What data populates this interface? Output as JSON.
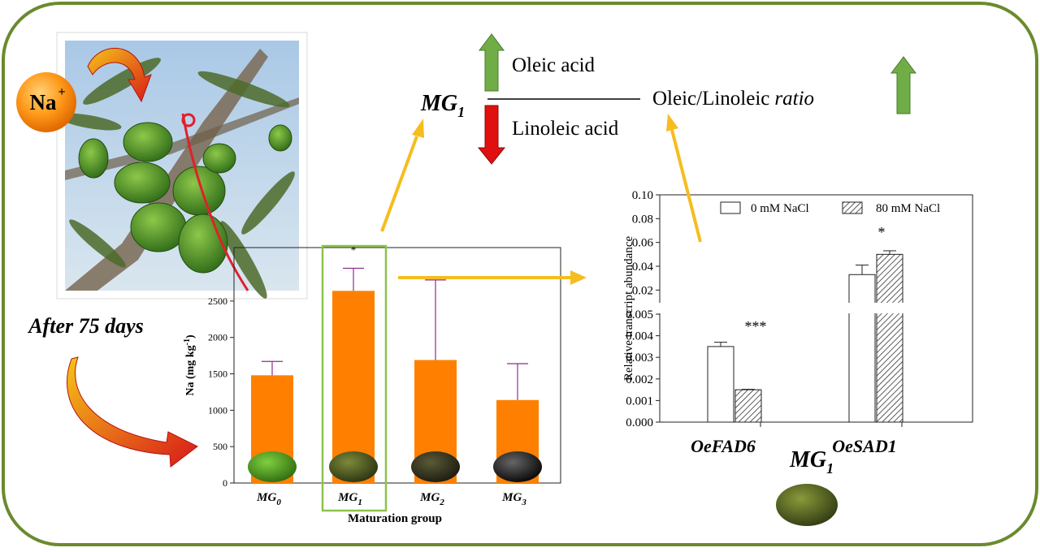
{
  "ion": {
    "symbol": "Na",
    "charge": "+"
  },
  "after_label": "After 75 days",
  "effects": {
    "group": "MG",
    "group_sub": "1",
    "up_label": "Oleic acid",
    "down_label": "Linoleic acid",
    "ratio_label": "Oleic/Linoleic",
    "ratio_italic": "ratio"
  },
  "bottom_label": {
    "main": "MG",
    "sub": "1"
  },
  "colors": {
    "frame": "#6b8a2e",
    "orange": "#ff8000",
    "arrow_yellow": "#f5bd1f",
    "arrow_green": "#70ad47",
    "arrow_red": "#e01010",
    "box_green": "#8bc34a"
  },
  "chart_data": [
    {
      "type": "bar",
      "categories": [
        "MG0",
        "MG1",
        "MG2",
        "MG3"
      ],
      "category_labels": [
        {
          "main": "MG",
          "sub": "0"
        },
        {
          "main": "MG",
          "sub": "1"
        },
        {
          "main": "MG",
          "sub": "2"
        },
        {
          "main": "MG",
          "sub": "3"
        }
      ],
      "values": [
        1480,
        2640,
        1690,
        1140
      ],
      "errors": [
        190,
        310,
        1100,
        500
      ],
      "significance": [
        "",
        "*",
        "",
        ""
      ],
      "ylabel": {
        "main": "Na (mg kg",
        "sup": "-1",
        "end": ")"
      },
      "xlabel": "Maturation group",
      "ylim": [
        0,
        2900
      ],
      "yticks": [
        0,
        500,
        1000,
        1500,
        2000,
        2500
      ],
      "bar_color": "#ff8000",
      "error_color": "#8e2d8e",
      "highlight": "MG1"
    },
    {
      "type": "bar",
      "categories": [
        "OeFAD6",
        "OeSAD1"
      ],
      "series": [
        {
          "name": "0 mM NaCl",
          "values": [
            0.0035,
            0.033
          ],
          "errors": [
            0.0002,
            0.008
          ]
        },
        {
          "name": "80 mM NaCl",
          "values": [
            0.0015,
            0.05
          ],
          "errors": [
            2e-05,
            0.003
          ]
        }
      ],
      "significance": [
        "***",
        "*"
      ],
      "ylabel": "Relative transcript abundance",
      "axis_break": true,
      "ylim_lower": [
        0,
        0.005
      ],
      "ylim_upper": [
        0.005,
        0.1
      ],
      "yticks_lower": [
        "0.000",
        "0.001",
        "0.002",
        "0.003",
        "0.004",
        "0.005"
      ],
      "yticks_upper": [
        "0.02",
        "0.04",
        "0.06",
        "0.08",
        "0.10"
      ],
      "legend": "top-right"
    }
  ]
}
